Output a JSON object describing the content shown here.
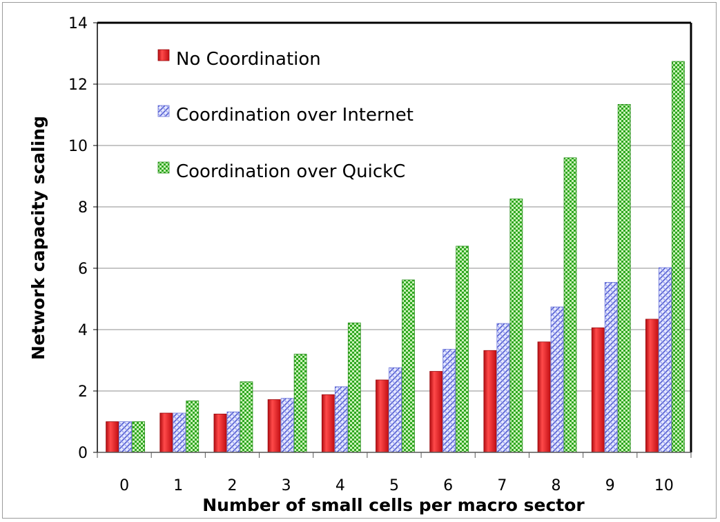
{
  "chart_data": {
    "type": "bar",
    "xlabel": "Number of small cells per macro sector",
    "ylabel": "Network capacity scaling",
    "ylim": [
      0,
      14
    ],
    "yticks": [
      "0",
      "2",
      "4",
      "6",
      "8",
      "10",
      "12",
      "14"
    ],
    "categories": [
      "0",
      "1",
      "2",
      "3",
      "4",
      "5",
      "6",
      "7",
      "8",
      "9",
      "10"
    ],
    "grid": true,
    "legend_position": "top-left",
    "series": [
      {
        "name": "No Coordination",
        "color": "#e8191e",
        "pattern": "solid",
        "values": [
          1.0,
          1.28,
          1.25,
          1.72,
          1.88,
          2.36,
          2.64,
          3.32,
          3.6,
          4.06,
          4.34
        ]
      },
      {
        "name": "Coordination over Internet",
        "color": "#5b66d6",
        "pattern": "diagonal-crosshatch",
        "values": [
          1.0,
          1.28,
          1.32,
          1.76,
          2.14,
          2.76,
          3.36,
          4.2,
          4.74,
          5.54,
          6.02
        ]
      },
      {
        "name": "Coordination over QuickC",
        "color": "#36b82a",
        "pattern": "checkered",
        "values": [
          1.0,
          1.68,
          2.3,
          3.2,
          4.22,
          5.62,
          6.72,
          8.26,
          9.6,
          11.34,
          12.74
        ]
      }
    ]
  }
}
